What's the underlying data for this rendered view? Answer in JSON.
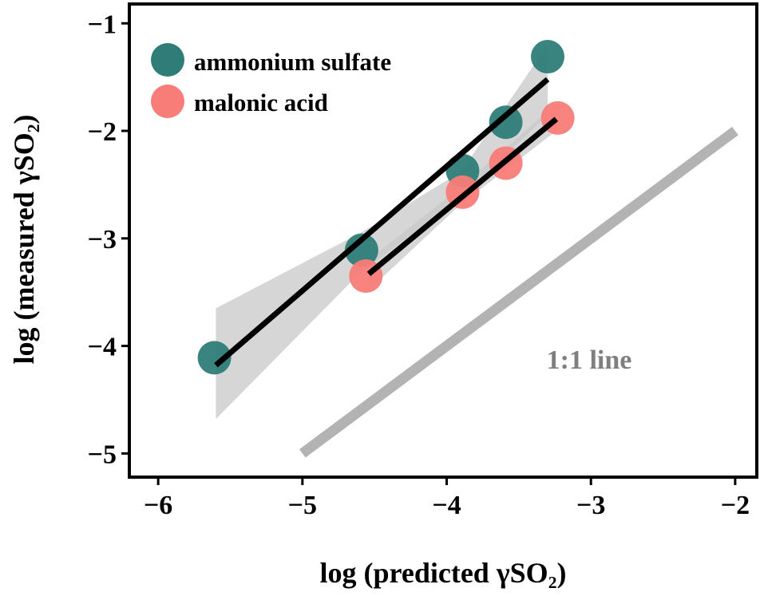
{
  "chart_data": {
    "type": "scatter",
    "title": "",
    "xlabel": "log (predicted γSO₂)",
    "ylabel": "log (measured γSO₂)",
    "xlim": [
      -6.2,
      -1.85
    ],
    "ylim": [
      -5.22,
      -0.82
    ],
    "xticks": [
      -6,
      -5,
      -4,
      -3,
      -2
    ],
    "yticks": [
      -1,
      -2,
      -3,
      -4,
      -5
    ],
    "xtick_labels": [
      "−6",
      "−5",
      "−4",
      "−3",
      "−2"
    ],
    "ytick_labels": [
      "−1",
      "−2",
      "−3",
      "−4",
      "−5"
    ],
    "grid": false,
    "legend_position": "top-left",
    "series": [
      {
        "name": "ammonium sulfate",
        "color": "#2e7d78",
        "x": [
          -5.61,
          -4.59,
          -3.89,
          -3.59,
          -3.3
        ],
        "y": [
          -4.11,
          -3.11,
          -2.37,
          -1.92,
          -1.31
        ],
        "fit": {
          "x": [
            -5.6,
            -3.3
          ],
          "y": [
            -4.18,
            -1.52
          ]
        },
        "band": {
          "x": [
            -5.6,
            -4.6,
            -3.9,
            -3.3
          ],
          "upper": [
            -3.65,
            -2.95,
            -2.38,
            -1.2
          ],
          "lower": [
            -4.68,
            -3.32,
            -2.62,
            -1.85
          ]
        }
      },
      {
        "name": "malonic acid",
        "color": "#f87c78",
        "x": [
          -4.56,
          -3.89,
          -3.59,
          -3.23
        ],
        "y": [
          -3.35,
          -2.57,
          -2.3,
          -1.88
        ],
        "fit": {
          "x": [
            -4.54,
            -3.24
          ],
          "y": [
            -3.33,
            -1.89
          ]
        },
        "band": {
          "x": [
            -4.54,
            -3.9,
            -3.24
          ],
          "upper": [
            -3.2,
            -2.52,
            -1.75
          ],
          "lower": [
            -3.48,
            -2.68,
            -2.0
          ]
        }
      }
    ],
    "reference_line": {
      "label": "1:1 line",
      "x": [
        -5,
        -2
      ],
      "y": [
        -5,
        -2
      ],
      "color": "#b3b3b3"
    },
    "band_color": "#c8c8c8"
  }
}
